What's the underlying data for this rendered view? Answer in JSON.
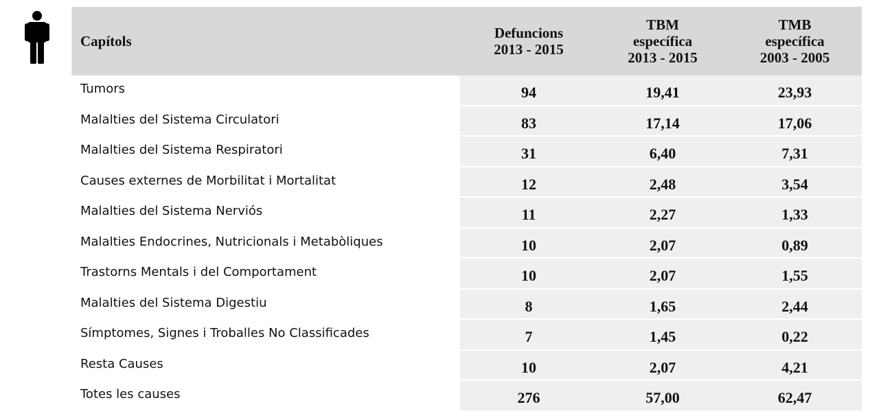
{
  "table": {
    "header": {
      "label": "Capítols",
      "columns": [
        [
          "Defuncions",
          "2013 - 2015"
        ],
        [
          "TBM",
          "específica",
          "2013 - 2015"
        ],
        [
          "TMB",
          "específica",
          "2003 -  2005"
        ]
      ]
    },
    "rows": [
      [
        "Tumors",
        "94",
        "19,41",
        "23,93"
      ],
      [
        "Malalties del Sistema Circulatori",
        "83",
        "17,14",
        "17,06"
      ],
      [
        "Malalties del Sistema Respiratori",
        "31",
        "6,40",
        "7,31"
      ],
      [
        "Causes externes de Morbilitat i Mortalitat",
        "12",
        "2,48",
        "3,54"
      ],
      [
        "Malalties del Sistema Nerviós",
        "11",
        "2,27",
        "1,33"
      ],
      [
        "Malalties Endocrines, Nutricionals i Metabòliques",
        "10",
        "2,07",
        "0,89"
      ],
      [
        "Trastorns Mentals i del Comportament",
        "10",
        "2,07",
        "1,55"
      ],
      [
        "Malalties del Sistema Digestiu",
        "8",
        "1,65",
        "2,44"
      ],
      [
        "Símptomes, Signes i Troballes No Classificades",
        "7",
        "1,45",
        "0,22"
      ],
      [
        "Resta Causes",
        "10",
        "2,07",
        "4,21"
      ],
      [
        "Totes les causes",
        "276",
        "57,00",
        "62,47"
      ]
    ]
  }
}
